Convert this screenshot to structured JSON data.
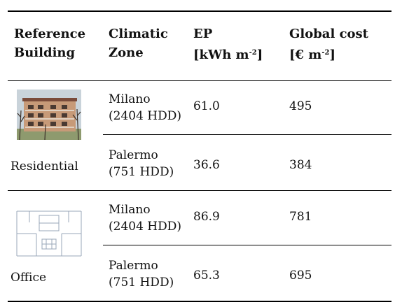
{
  "headers": {
    "ref_line1": "Reference",
    "ref_line2": "Building",
    "zone_line1": "Climatic",
    "zone_line2": "Zone",
    "ep_line1": "EP",
    "ep_unit_pre": "[kWh m",
    "ep_unit_sup": "-2",
    "ep_unit_post": "]",
    "gc_line1": "Global cost",
    "gc_unit_pre": "[€ m",
    "gc_unit_sup": "-2",
    "gc_unit_post": "]"
  },
  "groups": [
    {
      "building": "Residential",
      "rows": [
        {
          "zone_line1": "Milano",
          "zone_line2": "(2404 HDD)",
          "ep": "61.0",
          "cost": "495"
        },
        {
          "zone_line1": "Palermo",
          "zone_line2": "(751 HDD)",
          "ep": "36.6",
          "cost": "384"
        }
      ]
    },
    {
      "building": "Office",
      "rows": [
        {
          "zone_line1": "Milano",
          "zone_line2": "(2404 HDD)",
          "ep": "86.9",
          "cost": "781"
        },
        {
          "zone_line1": "Palermo",
          "zone_line2": "(751 HDD)",
          "ep": "65.3",
          "cost": "695"
        }
      ]
    }
  ]
}
